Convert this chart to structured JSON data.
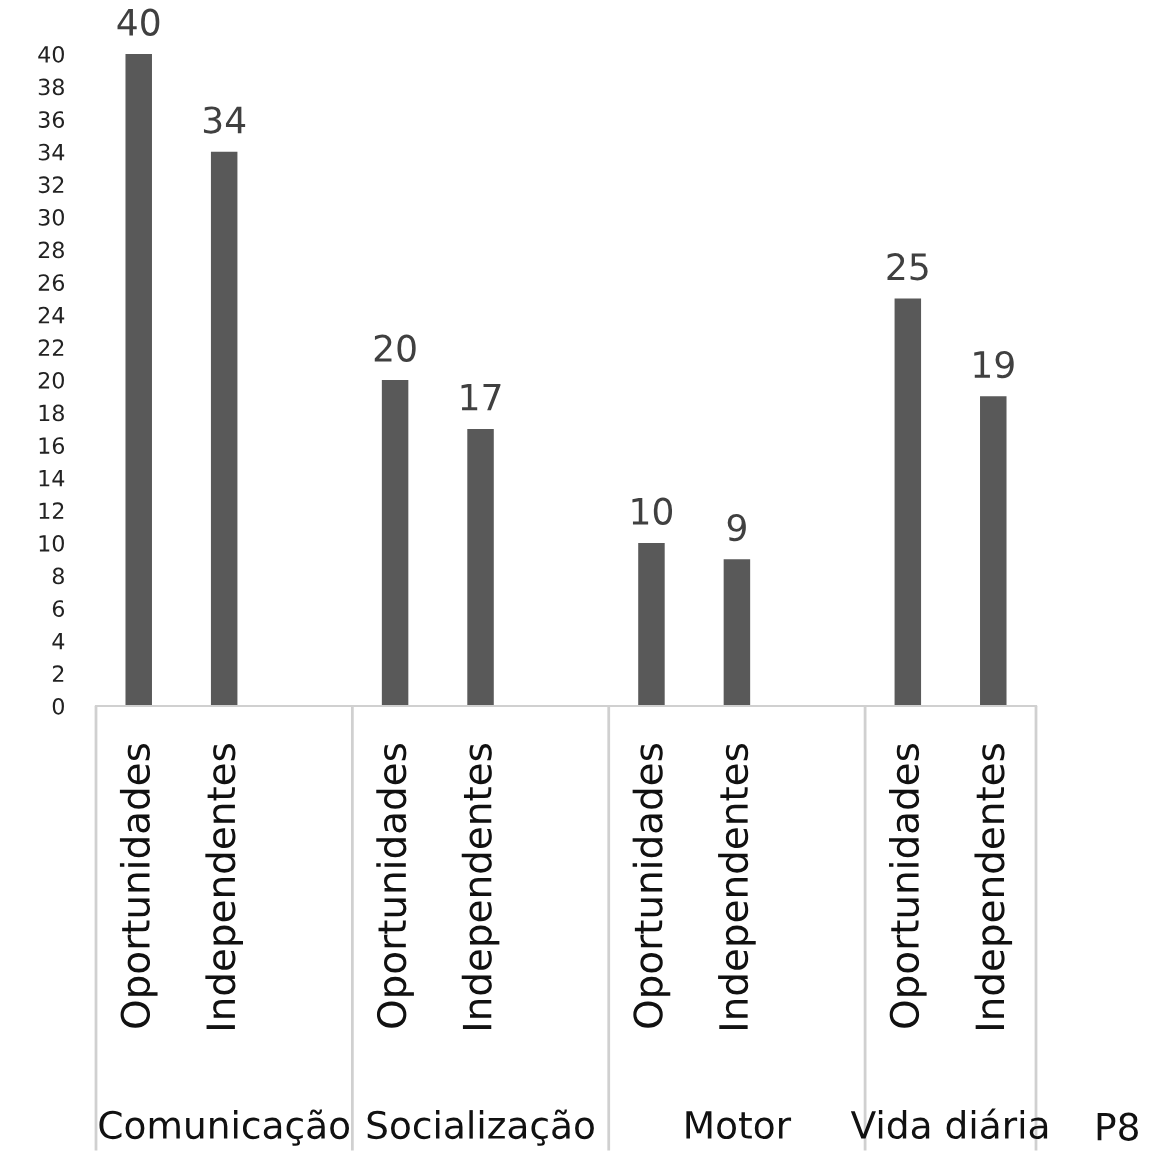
{
  "chart_data": {
    "type": "bar",
    "categories": [
      "Oportunidades",
      "Independentes",
      null,
      "Oportunidades",
      "Independentes",
      null,
      "Oportunidades",
      "Independentes",
      null,
      "Oportunidades",
      "Independentes"
    ],
    "values": [
      40,
      34,
      null,
      20,
      17,
      null,
      10,
      9,
      null,
      25,
      19
    ],
    "color": "#595959",
    "ylim": [
      0,
      40
    ],
    "yticks": [
      0,
      2,
      4,
      6,
      8,
      10,
      12,
      14,
      16,
      18,
      20,
      22,
      24,
      26,
      28,
      30,
      32,
      34,
      36,
      38,
      40
    ],
    "data_labels": true,
    "annotations": [
      "Comunicação",
      "Socialização",
      "Motor",
      "Vida diária",
      "P8"
    ]
  }
}
